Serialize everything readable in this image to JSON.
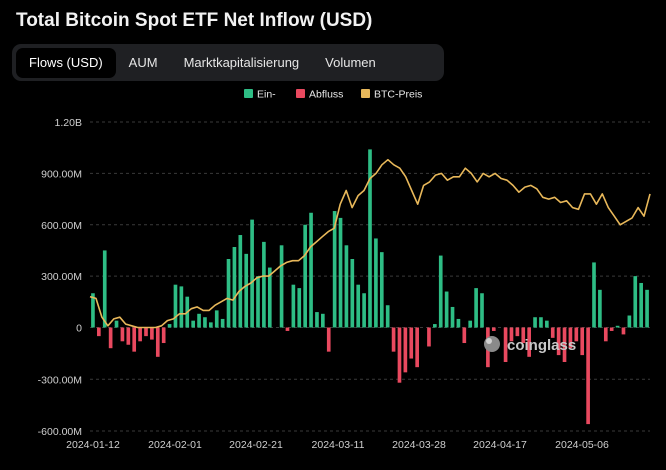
{
  "title": "Total Bitcoin Spot ETF Net Inflow (USD)",
  "tabs": [
    {
      "label": "Flows (USD)",
      "active": true
    },
    {
      "label": "AUM",
      "active": false
    },
    {
      "label": "Marktkapitalisierung",
      "active": false
    },
    {
      "label": "Volumen",
      "active": false
    }
  ],
  "colors": {
    "inflow": "#2ebd85",
    "outflow": "#e9495f",
    "price": "#e8b85a",
    "grid": "#3a3a3a",
    "background": "#000000"
  },
  "watermark": "coinglass",
  "chart_data": {
    "type": "bar",
    "title": "Total Bitcoin Spot ETF Net Inflow (USD)",
    "legend_position": "top",
    "legend": [
      {
        "label": "Ein-",
        "color": "#2ebd85"
      },
      {
        "label": "Abfluss",
        "color": "#e9495f"
      },
      {
        "label": "BTC-Preis",
        "color": "#e8b85a"
      }
    ],
    "y_ticks": [
      "1.20B",
      "900.00M",
      "600.00M",
      "300.00M",
      "0",
      "-300.00M",
      "-600.00M"
    ],
    "y_tick_values": [
      1200,
      900,
      600,
      300,
      0,
      -300,
      -600
    ],
    "ylim": [
      -600,
      1200
    ],
    "y_unit": "million USD",
    "x_ticks": [
      "2024-01-12",
      "2024-02-01",
      "2024-02-21",
      "2024-03-11",
      "2024-03-28",
      "2024-04-17",
      "2024-05-06"
    ],
    "grid": true,
    "series": [
      {
        "name": "Ein- / Abfluss",
        "type": "bar",
        "values": [
          200,
          -50,
          450,
          -120,
          40,
          -80,
          -100,
          -140,
          -80,
          -50,
          -70,
          -170,
          -90,
          20,
          250,
          240,
          180,
          40,
          80,
          60,
          30,
          100,
          50,
          400,
          470,
          540,
          430,
          630,
          300,
          500,
          350,
          0,
          480,
          -20,
          250,
          230,
          600,
          670,
          90,
          80,
          -140,
          680,
          640,
          480,
          400,
          250,
          200,
          1040,
          520,
          440,
          130,
          -140,
          -320,
          -260,
          -180,
          -230,
          0,
          -110,
          20,
          420,
          210,
          120,
          50,
          -90,
          40,
          230,
          200,
          -230,
          -20,
          0,
          -200,
          -80,
          -50,
          -90,
          -170,
          60,
          60,
          40,
          -60,
          -160,
          -200,
          -120,
          -80,
          -160,
          -560,
          380,
          220,
          -80,
          -20,
          10,
          -40,
          70,
          300,
          260,
          220
        ]
      },
      {
        "name": "BTC-Preis",
        "type": "line",
        "values": [
          180,
          170,
          60,
          10,
          50,
          60,
          20,
          10,
          0,
          0,
          0,
          0,
          10,
          40,
          50,
          80,
          80,
          110,
          120,
          100,
          100,
          130,
          150,
          170,
          160,
          210,
          240,
          260,
          290,
          300,
          300,
          330,
          360,
          380,
          390,
          390,
          420,
          470,
          500,
          530,
          560,
          580,
          720,
          800,
          700,
          770,
          800,
          870,
          900,
          950,
          980,
          950,
          930,
          880,
          800,
          720,
          830,
          850,
          890,
          900,
          860,
          880,
          880,
          930,
          900,
          850,
          900,
          880,
          900,
          870,
          860,
          830,
          790,
          820,
          830,
          810,
          760,
          750,
          760,
          730,
          740,
          700,
          690,
          780,
          780,
          720,
          780,
          700,
          650,
          600,
          620,
          640,
          700,
          650,
          780
        ]
      }
    ]
  }
}
